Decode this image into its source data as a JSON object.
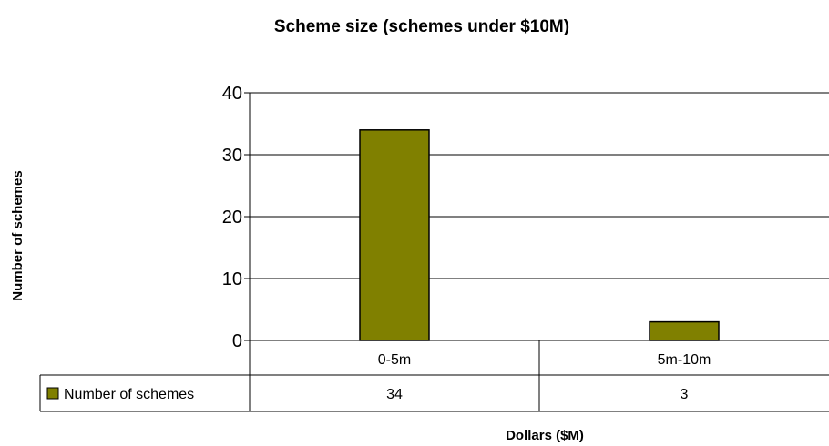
{
  "colors": {
    "bar_fill": "#808000",
    "bar_stroke": "#000000",
    "grid": "#000000"
  },
  "chart_data": {
    "type": "bar",
    "title": "Scheme size (schemes under $10M)",
    "xlabel": "Dollars ($M)",
    "ylabel": "Number of schemes",
    "categories": [
      "0-5m",
      "5m-10m"
    ],
    "series": [
      {
        "name": "Number of schemes",
        "values": [
          34,
          3
        ]
      }
    ],
    "ylim": [
      0,
      40
    ],
    "yticks": [
      0,
      10,
      20,
      30,
      40
    ],
    "grid": true,
    "data_table": true,
    "legend_placement": "data-table-row"
  }
}
